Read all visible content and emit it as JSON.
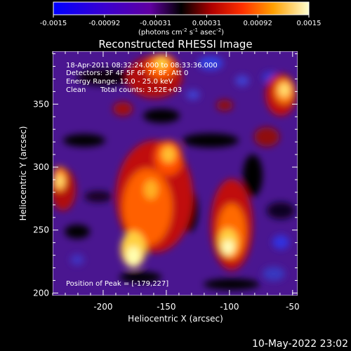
{
  "colorbar": {
    "ticks": [
      "-0.0015",
      "-0.00092",
      "-0.00031",
      "0.00031",
      "0.00092",
      "0.0015"
    ],
    "unit_prefix": "(photons cm",
    "unit_exp1": "-2",
    "unit_mid": " s",
    "unit_exp2": "-1",
    "unit_mid2": " asec",
    "unit_exp3": "-2",
    "unit_suffix": ")"
  },
  "image": {
    "title": "Reconstructed RHESSI Image",
    "annotation": {
      "time_range": "18-Apr-2011 08:32:24.000 to 08:33:36.000",
      "detectors": "Detectors: 3F 4F 5F 6F 7F 8F, Att 0",
      "energy": "Energy Range: 12.0 - 25.0 keV",
      "method": "Clean",
      "counts": "Total counts: 3.52E+03"
    },
    "peak": "Position of Peak = [-179,227]",
    "xaxis": {
      "label": "Heliocentric X (arcsec)",
      "ticks": [
        {
          "value": -200,
          "label": "-200"
        },
        {
          "value": -150,
          "label": "-150"
        },
        {
          "value": -100,
          "label": "-100"
        },
        {
          "value": -50,
          "label": "-50"
        }
      ],
      "range": [
        -240,
        -46
      ]
    },
    "yaxis": {
      "label": "Heliocentric Y (arcsec)",
      "ticks": [
        {
          "value": 250,
          "label": "250"
        },
        {
          "value": 300,
          "label": "300"
        },
        {
          "value": 350,
          "label": "350"
        }
      ],
      "range": [
        198,
        392
      ]
    }
  },
  "footer": {
    "date": "10-May-2022 23:02"
  }
}
